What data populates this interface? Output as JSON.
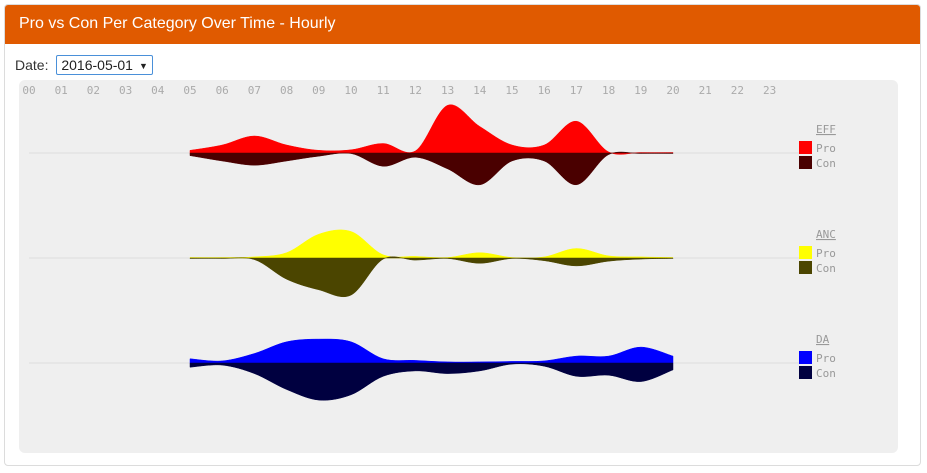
{
  "header": {
    "title": "Pro vs Con Per Category Over Time - Hourly"
  },
  "controls": {
    "date_label": "Date:",
    "date_value": "2016-05-01"
  },
  "chart_data": {
    "type": "area",
    "style": "mirrored streamgraph (Pro above baseline, Con below)",
    "x": [
      "00",
      "01",
      "02",
      "03",
      "04",
      "05",
      "06",
      "07",
      "08",
      "09",
      "10",
      "11",
      "12",
      "13",
      "14",
      "15",
      "16",
      "17",
      "18",
      "19",
      "20",
      "21",
      "22",
      "23"
    ],
    "categories": [
      {
        "name": "EFF",
        "series": [
          {
            "name": "Pro",
            "color": "#ff0000",
            "values": [
              null,
              null,
              null,
              null,
              null,
              0.5,
              1.5,
              3.2,
              1.5,
              0.5,
              0.6,
              1.8,
              0.4,
              9,
              5,
              1.5,
              1.5,
              6,
              0.2,
              0.1,
              0.1,
              null,
              null,
              null
            ]
          },
          {
            "name": "Con",
            "color": "#4a0000",
            "values": [
              null,
              null,
              null,
              null,
              null,
              0.5,
              1.5,
              2.3,
              1.5,
              0.6,
              0.1,
              2.5,
              0.8,
              3,
              6,
              1.5,
              1.5,
              6,
              0.3,
              0.1,
              0.1,
              null,
              null,
              null
            ]
          }
        ]
      },
      {
        "name": "ANC",
        "series": [
          {
            "name": "Pro",
            "color": "#ffff00",
            "values": [
              null,
              null,
              null,
              null,
              null,
              0.1,
              0.1,
              0.2,
              1,
              4.5,
              5,
              0.6,
              0.3,
              0.1,
              1,
              0.1,
              0.2,
              1.8,
              0.4,
              0.2,
              0.1,
              null,
              null,
              null
            ]
          },
          {
            "name": "Con",
            "color": "#4b4500",
            "values": [
              null,
              null,
              null,
              null,
              null,
              0.1,
              0.1,
              0.3,
              4,
              6,
              7,
              0.2,
              0.4,
              0.1,
              1,
              0.1,
              0.5,
              1.5,
              0.6,
              0.2,
              0.1,
              null,
              null,
              null
            ]
          }
        ]
      },
      {
        "name": "DA",
        "series": [
          {
            "name": "Pro",
            "color": "#0000ff",
            "values": [
              null,
              null,
              null,
              null,
              null,
              0.8,
              0.4,
              1.8,
              4,
              4.5,
              4,
              0.8,
              0.5,
              0.2,
              0.2,
              0.3,
              0.4,
              1.3,
              1.3,
              3,
              1.3,
              null,
              null,
              null
            ]
          },
          {
            "name": "Con",
            "color": "#000040",
            "values": [
              null,
              null,
              null,
              null,
              null,
              0.8,
              0.4,
              2,
              5,
              7,
              6,
              2.5,
              1.5,
              2,
              1.5,
              0.2,
              0.6,
              2.5,
              2.3,
              3.5,
              1.3,
              null,
              null,
              null
            ]
          }
        ]
      }
    ]
  }
}
